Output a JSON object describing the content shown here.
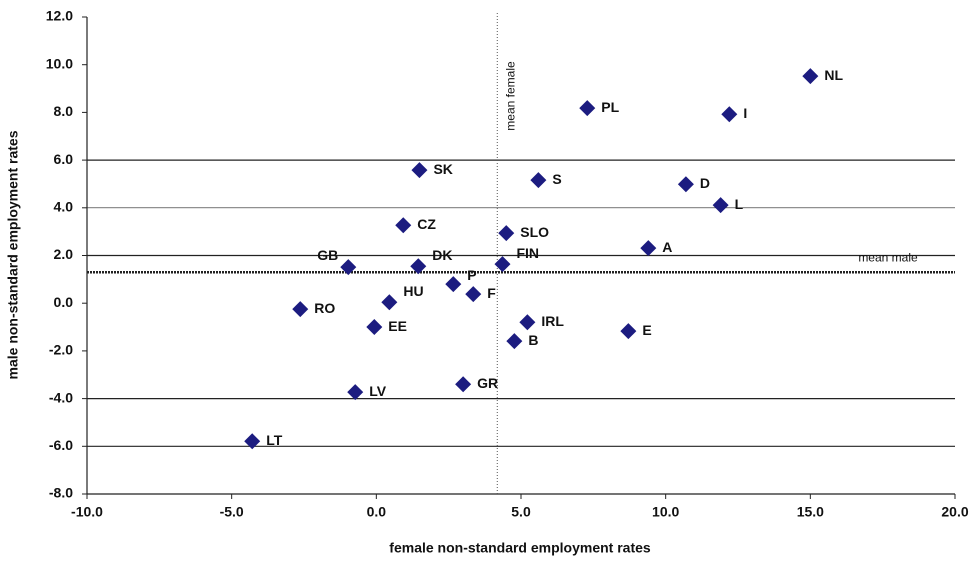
{
  "chart_data": {
    "type": "scatter",
    "x_label": "female non-standard employment rates",
    "y_label": "male non-standard employment rates",
    "color": "#1c1c80",
    "labels": [
      "NL",
      "PL",
      "I",
      "SK",
      "S",
      "D",
      "L",
      "CZ",
      "SLO",
      "A",
      "GB",
      "DK",
      "FIN",
      "P",
      "F",
      "HU",
      "RO",
      "EE",
      "IRL",
      "E",
      "B",
      "GR",
      "LV",
      "LT"
    ],
    "x": [
      15.0,
      7.29,
      12.2,
      1.49,
      5.6,
      10.7,
      11.9,
      0.93,
      4.49,
      9.4,
      -0.97,
      1.45,
      4.36,
      2.66,
      3.35,
      0.45,
      -2.63,
      -0.07,
      5.22,
      8.71,
      4.77,
      3.0,
      -0.73,
      -4.29
    ],
    "y": [
      9.52,
      8.18,
      7.92,
      5.58,
      5.16,
      4.99,
      4.11,
      3.27,
      2.94,
      2.31,
      1.51,
      1.55,
      1.64,
      0.8,
      0.38,
      0.04,
      -0.25,
      -1.0,
      -0.8,
      -1.17,
      -1.59,
      -3.4,
      -3.73,
      -5.79
    ],
    "xlim": [
      -10,
      20
    ],
    "ylim": [
      -8,
      12
    ],
    "xticks": [
      {
        "value": -10,
        "label": "-10.0"
      },
      {
        "value": -5,
        "label": "-5.0"
      },
      {
        "value": 0,
        "label": "0.0"
      },
      {
        "value": 5,
        "label": "5.0"
      },
      {
        "value": 10,
        "label": "10.0"
      },
      {
        "value": 15,
        "label": "15.0"
      },
      {
        "value": 20,
        "label": "20.0"
      }
    ],
    "yticks": [
      {
        "value": -8,
        "label": "-8.0"
      },
      {
        "value": -6,
        "label": "-6.0"
      },
      {
        "value": -4,
        "label": "-4.0"
      },
      {
        "value": -2,
        "label": "-2.0"
      },
      {
        "value": 0,
        "label": "0.0"
      },
      {
        "value": 2,
        "label": "2.0"
      },
      {
        "value": 4,
        "label": "4.0"
      },
      {
        "value": 6,
        "label": "6.0"
      },
      {
        "value": 8,
        "label": "8.0"
      },
      {
        "value": 10,
        "label": "10.0"
      },
      {
        "value": 12,
        "label": "12.0"
      }
    ],
    "grid_lines": [
      6,
      4,
      2,
      -4,
      -6
    ],
    "mean_female": {
      "label": "mean female",
      "value": 4.18
    },
    "mean_male": {
      "label": "mean male",
      "value": 1.3
    }
  }
}
